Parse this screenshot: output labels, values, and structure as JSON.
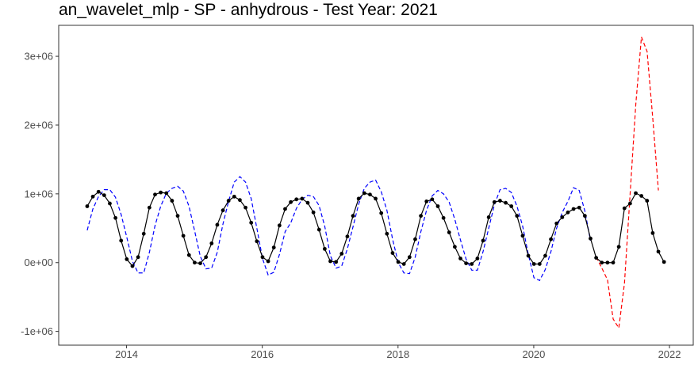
{
  "chart_data": {
    "type": "line",
    "title": "an_wavelet_mlp - SP - anhydrous - Test Year: 2021",
    "xlabel": "",
    "ylabel": "",
    "xlim": [
      2013.0,
      2022.35
    ],
    "ylim": [
      -1200000,
      3450000
    ],
    "x_ticks": [
      2014,
      2016,
      2018,
      2020,
      2022
    ],
    "x_tick_labels": [
      "2014",
      "2016",
      "2018",
      "2020",
      "2022"
    ],
    "y_ticks": [
      -1000000,
      0,
      1000000,
      2000000,
      3000000
    ],
    "y_tick_labels": [
      "-1e+06",
      "0e+00",
      "1e+06",
      "2e+06",
      "3e+06"
    ],
    "grid": false,
    "legend": "none",
    "series": [
      {
        "style": "solid-with-points",
        "color": "#000000",
        "x_start": 2013.42,
        "x_step": 0.08333,
        "values": [
          820000,
          960000,
          1030000,
          980000,
          860000,
          650000,
          320000,
          50000,
          -50000,
          80000,
          420000,
          800000,
          990000,
          1020000,
          1010000,
          900000,
          680000,
          390000,
          110000,
          0,
          -10000,
          80000,
          280000,
          550000,
          760000,
          900000,
          960000,
          910000,
          800000,
          580000,
          310000,
          80000,
          20000,
          220000,
          540000,
          780000,
          880000,
          920000,
          930000,
          870000,
          730000,
          480000,
          200000,
          20000,
          10000,
          130000,
          380000,
          680000,
          930000,
          1010000,
          990000,
          930000,
          720000,
          420000,
          140000,
          10000,
          -20000,
          80000,
          340000,
          680000,
          890000,
          920000,
          820000,
          650000,
          440000,
          230000,
          60000,
          -10000,
          -20000,
          60000,
          320000,
          660000,
          880000,
          900000,
          870000,
          820000,
          680000,
          390000,
          100000,
          -20000,
          -20000,
          100000,
          340000,
          570000,
          660000,
          730000,
          780000,
          800000,
          680000,
          350000,
          70000,
          0,
          0,
          0,
          230000,
          790000,
          860000,
          1010000,
          970000,
          900000,
          430000,
          160000,
          10000
        ]
      },
      {
        "style": "dashed",
        "color": "#0000ff",
        "x_start": 2013.42,
        "x_step": 0.08333,
        "values": [
          470000,
          780000,
          960000,
          1060000,
          1060000,
          950000,
          700000,
          370000,
          20000,
          -150000,
          -150000,
          150000,
          540000,
          820000,
          1010000,
          1080000,
          1110000,
          1040000,
          820000,
          460000,
          90000,
          -90000,
          -80000,
          150000,
          560000,
          890000,
          1170000,
          1250000,
          1170000,
          930000,
          500000,
          60000,
          -180000,
          -140000,
          120000,
          450000,
          580000,
          790000,
          920000,
          980000,
          960000,
          830000,
          530000,
          100000,
          -80000,
          -50000,
          200000,
          520000,
          850000,
          1080000,
          1170000,
          1200000,
          1030000,
          760000,
          340000,
          0,
          -150000,
          -160000,
          80000,
          450000,
          760000,
          970000,
          1050000,
          1000000,
          880000,
          630000,
          330000,
          50000,
          -110000,
          -110000,
          160000,
          500000,
          840000,
          1060000,
          1080000,
          1020000,
          820000,
          530000,
          120000,
          -220000,
          -260000,
          -100000,
          160000,
          500000,
          730000,
          890000,
          1090000,
          1050000,
          750000,
          320000
        ]
      },
      {
        "style": "dashed",
        "color": "#ff0000",
        "x_start": 2020.92,
        "x_step": 0.08333,
        "values": [
          80000,
          -80000,
          -250000,
          -820000,
          -950000,
          -300000,
          1000000,
          2300000,
          3280000,
          3070000,
          2100000,
          1050000
        ]
      }
    ]
  }
}
